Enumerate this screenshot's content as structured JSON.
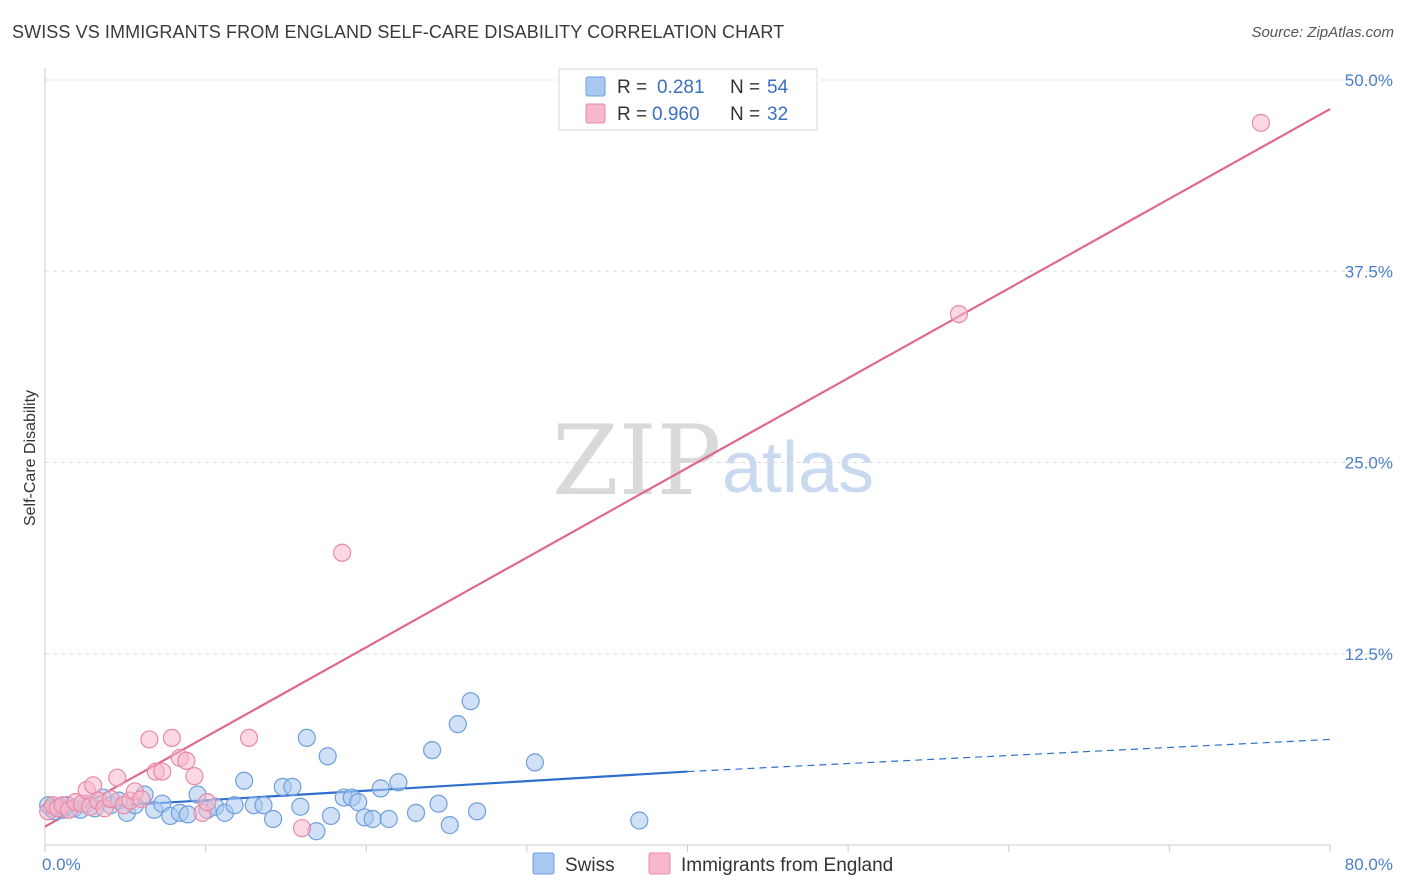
{
  "title": "SWISS VS IMMIGRANTS FROM ENGLAND SELF-CARE DISABILITY CORRELATION CHART",
  "source": "Source: ZipAtlas.com",
  "watermark": {
    "zip": "ZIP",
    "atlas": "atlas"
  },
  "colors": {
    "swiss_fill": "#a9c8f0",
    "swiss_stroke": "#6f9fdc",
    "swiss_line": "#2e6fcc",
    "england_fill": "#f7b8cb",
    "england_stroke": "#e88aa8",
    "england_line": "#e06890",
    "grid": "#dddddd",
    "tick": "#4a7fc8"
  },
  "legend": {
    "rows": [
      {
        "r_label": "R =",
        "r_value": "0.281",
        "n_label": "N =",
        "n_value": "54"
      },
      {
        "r_label": "R =",
        "r_value": "0.960",
        "n_label": "N =",
        "n_value": "32"
      }
    ]
  },
  "chart_data": {
    "type": "scatter",
    "title": "SWISS VS IMMIGRANTS FROM ENGLAND SELF-CARE DISABILITY CORRELATION CHART",
    "xlabel": "",
    "ylabel": "Self-Care Disability",
    "xlim": [
      0,
      80
    ],
    "ylim": [
      0,
      50
    ],
    "x_tick_labels": [
      "0.0%",
      "80.0%"
    ],
    "y_ticks": [
      12.5,
      25.0,
      37.5,
      50.0
    ],
    "y_tick_labels": [
      "12.5%",
      "25.0%",
      "37.5%",
      "50.0%"
    ],
    "grid": true,
    "series": [
      {
        "name": "Swiss",
        "r": 0.281,
        "n": 54,
        "trend": {
          "x0": 0,
          "y0": 2.3,
          "x1": 40,
          "y1": 4.8,
          "dash_to_x": 80,
          "dash_to_y": 6.9
        },
        "points": [
          [
            0.2,
            2.6
          ],
          [
            0.4,
            2.4
          ],
          [
            0.6,
            2.2
          ],
          [
            0.9,
            2.5
          ],
          [
            1.1,
            2.3
          ],
          [
            1.4,
            2.6
          ],
          [
            1.8,
            2.4
          ],
          [
            2.2,
            2.3
          ],
          [
            2.6,
            2.7
          ],
          [
            3.1,
            2.4
          ],
          [
            3.6,
            3.1
          ],
          [
            4.1,
            2.6
          ],
          [
            4.6,
            2.9
          ],
          [
            5.1,
            2.1
          ],
          [
            5.6,
            2.6
          ],
          [
            6.2,
            3.3
          ],
          [
            6.8,
            2.3
          ],
          [
            7.3,
            2.7
          ],
          [
            7.8,
            1.9
          ],
          [
            8.4,
            2.1
          ],
          [
            8.9,
            2.0
          ],
          [
            9.5,
            3.3
          ],
          [
            10.1,
            2.3
          ],
          [
            10.6,
            2.5
          ],
          [
            11.2,
            2.1
          ],
          [
            11.8,
            2.6
          ],
          [
            12.4,
            4.2
          ],
          [
            13.0,
            2.6
          ],
          [
            13.6,
            2.6
          ],
          [
            14.2,
            1.7
          ],
          [
            14.8,
            3.8
          ],
          [
            15.4,
            3.8
          ],
          [
            15.9,
            2.5
          ],
          [
            16.3,
            7.0
          ],
          [
            16.9,
            0.9
          ],
          [
            17.6,
            5.8
          ],
          [
            17.8,
            1.9
          ],
          [
            18.6,
            3.1
          ],
          [
            19.1,
            3.1
          ],
          [
            19.5,
            2.8
          ],
          [
            19.9,
            1.8
          ],
          [
            20.4,
            1.7
          ],
          [
            20.9,
            3.7
          ],
          [
            21.4,
            1.7
          ],
          [
            22.0,
            4.1
          ],
          [
            23.1,
            2.1
          ],
          [
            24.1,
            6.2
          ],
          [
            24.5,
            2.7
          ],
          [
            25.2,
            1.3
          ],
          [
            25.7,
            7.9
          ],
          [
            26.5,
            9.4
          ],
          [
            26.9,
            2.2
          ],
          [
            30.5,
            5.4
          ],
          [
            37.0,
            1.6
          ]
        ]
      },
      {
        "name": "Immigrants from England",
        "r": 0.96,
        "n": 32,
        "trend": {
          "x0": 0,
          "y0": 1.2,
          "x1": 80,
          "y1": 48.1
        },
        "points": [
          [
            0.2,
            2.2
          ],
          [
            0.5,
            2.6
          ],
          [
            0.8,
            2.4
          ],
          [
            1.1,
            2.6
          ],
          [
            1.5,
            2.3
          ],
          [
            1.9,
            2.8
          ],
          [
            2.3,
            2.7
          ],
          [
            2.6,
            3.6
          ],
          [
            2.8,
            2.5
          ],
          [
            3.0,
            3.9
          ],
          [
            3.3,
            2.9
          ],
          [
            3.7,
            2.4
          ],
          [
            4.1,
            3.0
          ],
          [
            4.5,
            4.4
          ],
          [
            4.9,
            2.6
          ],
          [
            5.3,
            2.9
          ],
          [
            5.6,
            3.5
          ],
          [
            6.0,
            3.0
          ],
          [
            6.5,
            6.9
          ],
          [
            6.9,
            4.8
          ],
          [
            7.3,
            4.8
          ],
          [
            7.9,
            7.0
          ],
          [
            8.4,
            5.7
          ],
          [
            8.8,
            5.5
          ],
          [
            9.3,
            4.5
          ],
          [
            9.8,
            2.1
          ],
          [
            10.1,
            2.8
          ],
          [
            12.7,
            7.0
          ],
          [
            16.0,
            1.1
          ],
          [
            18.5,
            19.1
          ],
          [
            56.9,
            34.7
          ],
          [
            75.7,
            47.2
          ]
        ]
      }
    ],
    "legend": [
      "Swiss",
      "Immigrants from England"
    ]
  }
}
